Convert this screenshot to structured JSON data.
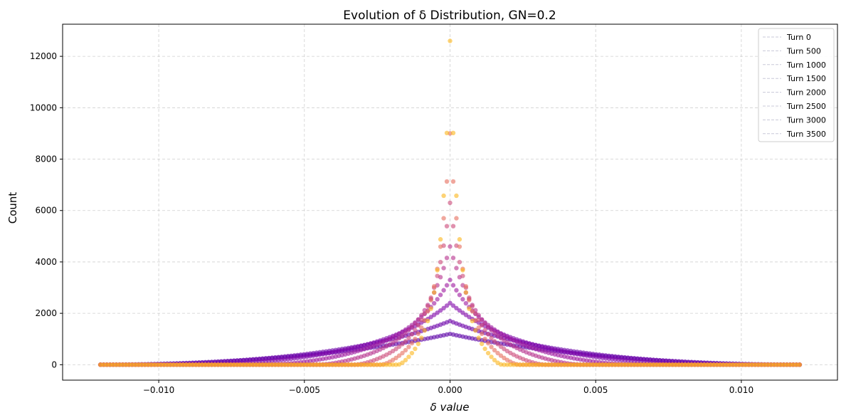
{
  "chart_data": {
    "type": "scatter",
    "title": "Evolution of δ Distribution, GN=0.2",
    "xlabel": "δ value",
    "ylabel": "Count",
    "xlim": [
      -0.0133,
      0.0133
    ],
    "ylim": [
      -600,
      13250
    ],
    "x_ticks": [
      -0.01,
      -0.005,
      0.0,
      0.005,
      0.01
    ],
    "x_tick_labels": [
      "−0.010",
      "−0.005",
      "0.000",
      "0.005",
      "0.010"
    ],
    "y_ticks": [
      0,
      2000,
      4000,
      6000,
      8000,
      10000,
      12000
    ],
    "y_tick_labels": [
      "0",
      "2000",
      "4000",
      "6000",
      "8000",
      "10000",
      "12000"
    ],
    "grid": true,
    "legend_position": "upper right",
    "colormap": "plasma (purple → orange)",
    "x_range": [
      -0.012,
      0.012
    ],
    "bins": 221,
    "series": [
      {
        "name": "Turn 0",
        "color": "#5c01a6",
        "peak_count": 1200,
        "zero_width": 0.012
      },
      {
        "name": "Turn 500",
        "color": "#6a00a8",
        "peak_count": 1700,
        "zero_width": 0.0111
      },
      {
        "name": "Turn 1000",
        "color": "#7e03a8",
        "peak_count": 2400,
        "zero_width": 0.0086
      },
      {
        "name": "Turn 1500",
        "color": "#9c179e",
        "peak_count": 3300,
        "zero_width": 0.0064
      },
      {
        "name": "Turn 2000",
        "color": "#b52f8c",
        "peak_count": 4600,
        "zero_width": 0.0046
      },
      {
        "name": "Turn 2500",
        "color": "#cc4778",
        "peak_count": 6300,
        "zero_width": 0.0033
      },
      {
        "name": "Turn 3000",
        "color": "#e66c5c",
        "peak_count": 9000,
        "zero_width": 0.0024
      },
      {
        "name": "Turn 3500",
        "color": "#fbb61a",
        "peak_count": 12600,
        "zero_width": 0.0018
      }
    ]
  }
}
